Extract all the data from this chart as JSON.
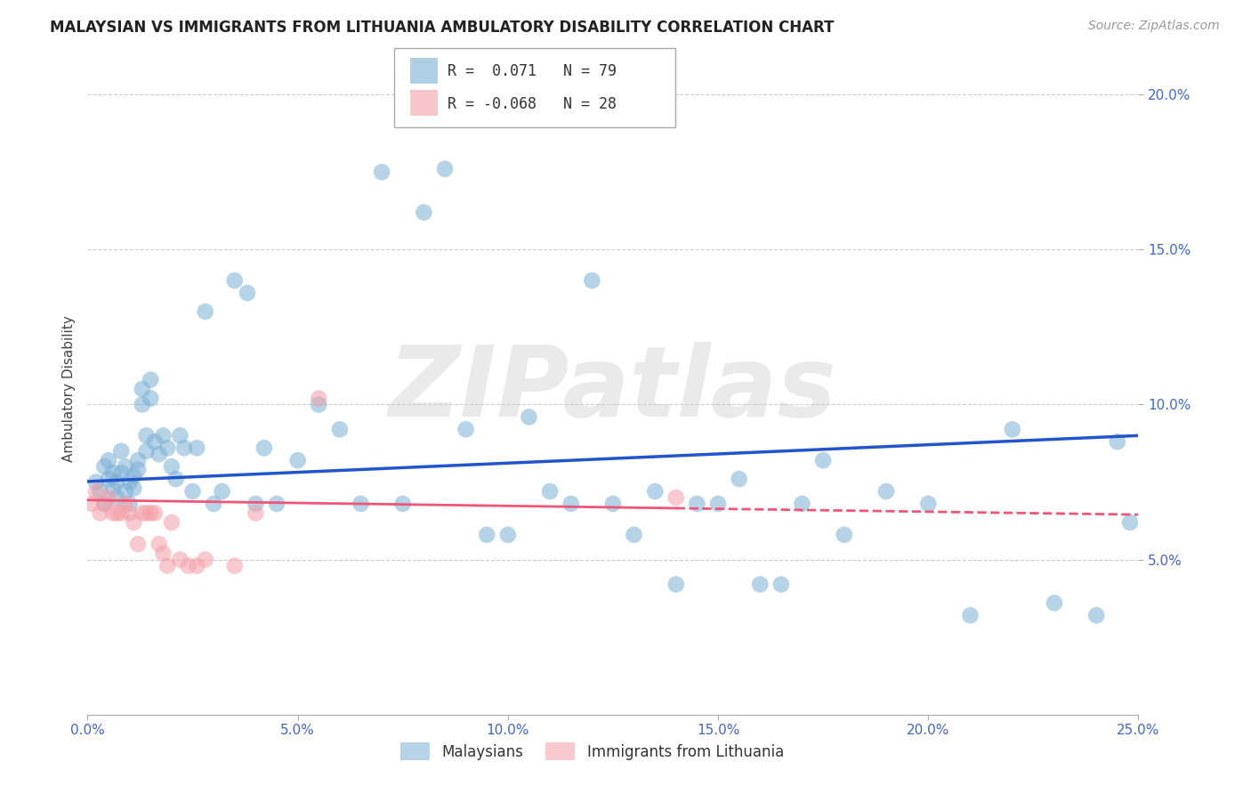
{
  "title": "MALAYSIAN VS IMMIGRANTS FROM LITHUANIA AMBULATORY DISABILITY CORRELATION CHART",
  "source": "Source: ZipAtlas.com",
  "ylabel": "Ambulatory Disability",
  "xlim": [
    0.0,
    0.25
  ],
  "ylim": [
    0.0,
    0.21
  ],
  "xticks": [
    0.0,
    0.05,
    0.1,
    0.15,
    0.2,
    0.25
  ],
  "yticks_right": [
    0.05,
    0.1,
    0.15,
    0.2
  ],
  "ytick_labels_right": [
    "5.0%",
    "10.0%",
    "15.0%",
    "20.0%"
  ],
  "xtick_labels": [
    "0.0%",
    "5.0%",
    "10.0%",
    "15.0%",
    "20.0%",
    "25.0%"
  ],
  "watermark": "ZIPatlas",
  "legend_r_blue": "R =  0.071",
  "legend_n_blue": "N = 79",
  "legend_r_pink": "R = -0.068",
  "legend_n_pink": "N = 28",
  "blue_color": "#7BAFD4",
  "pink_color": "#F4A0A8",
  "trendline_blue_color": "#2255CC",
  "trendline_pink_color": "#EE5577",
  "grid_color": "#CCCCCC",
  "background_color": "#FFFFFF",
  "blue_scatter_x": [
    0.002,
    0.003,
    0.004,
    0.004,
    0.005,
    0.005,
    0.006,
    0.006,
    0.007,
    0.007,
    0.008,
    0.008,
    0.009,
    0.009,
    0.01,
    0.01,
    0.011,
    0.011,
    0.012,
    0.012,
    0.013,
    0.013,
    0.014,
    0.014,
    0.015,
    0.015,
    0.016,
    0.017,
    0.018,
    0.019,
    0.02,
    0.021,
    0.022,
    0.023,
    0.025,
    0.026,
    0.028,
    0.03,
    0.032,
    0.035,
    0.038,
    0.04,
    0.042,
    0.045,
    0.05,
    0.055,
    0.06,
    0.065,
    0.07,
    0.075,
    0.08,
    0.085,
    0.09,
    0.095,
    0.1,
    0.105,
    0.11,
    0.115,
    0.12,
    0.125,
    0.13,
    0.135,
    0.14,
    0.145,
    0.15,
    0.155,
    0.16,
    0.165,
    0.17,
    0.175,
    0.18,
    0.19,
    0.2,
    0.21,
    0.22,
    0.23,
    0.24,
    0.245,
    0.248
  ],
  "blue_scatter_y": [
    0.075,
    0.072,
    0.08,
    0.068,
    0.076,
    0.082,
    0.073,
    0.078,
    0.07,
    0.075,
    0.085,
    0.078,
    0.072,
    0.08,
    0.075,
    0.068,
    0.077,
    0.073,
    0.082,
    0.079,
    0.105,
    0.1,
    0.09,
    0.085,
    0.108,
    0.102,
    0.088,
    0.084,
    0.09,
    0.086,
    0.08,
    0.076,
    0.09,
    0.086,
    0.072,
    0.086,
    0.13,
    0.068,
    0.072,
    0.14,
    0.136,
    0.068,
    0.086,
    0.068,
    0.082,
    0.1,
    0.092,
    0.068,
    0.175,
    0.068,
    0.162,
    0.176,
    0.092,
    0.058,
    0.058,
    0.096,
    0.072,
    0.068,
    0.14,
    0.068,
    0.058,
    0.072,
    0.042,
    0.068,
    0.068,
    0.076,
    0.042,
    0.042,
    0.068,
    0.082,
    0.058,
    0.072,
    0.068,
    0.032,
    0.092,
    0.036,
    0.032,
    0.088,
    0.062
  ],
  "pink_scatter_x": [
    0.001,
    0.002,
    0.003,
    0.004,
    0.005,
    0.006,
    0.007,
    0.008,
    0.009,
    0.01,
    0.011,
    0.012,
    0.013,
    0.014,
    0.015,
    0.016,
    0.017,
    0.018,
    0.019,
    0.02,
    0.022,
    0.024,
    0.026,
    0.028,
    0.035,
    0.04,
    0.055,
    0.14
  ],
  "pink_scatter_y": [
    0.068,
    0.072,
    0.065,
    0.068,
    0.07,
    0.065,
    0.065,
    0.065,
    0.068,
    0.065,
    0.062,
    0.055,
    0.065,
    0.065,
    0.065,
    0.065,
    0.055,
    0.052,
    0.048,
    0.062,
    0.05,
    0.048,
    0.048,
    0.05,
    0.048,
    0.065,
    0.102,
    0.07
  ],
  "blue_trend_start_y": 0.0752,
  "blue_trend_end_y": 0.09,
  "pink_trend_start_y": 0.0692,
  "pink_trend_end_y": 0.0645
}
